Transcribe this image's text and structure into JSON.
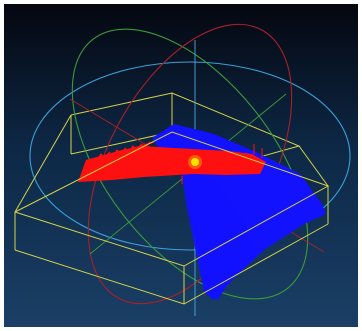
{
  "scene": {
    "background": {
      "top": "#05070f",
      "mid": "#0d2846",
      "bottom": "#1a3f66"
    },
    "colors": {
      "bounding_box": "#d4d34a",
      "gizmo_z": "#3aa0d8",
      "gizmo_y": "#3c9a3c",
      "gizmo_x": "#a8202a",
      "axis": "#4fa8e0",
      "red_point_cloud": "#ff1010",
      "blue_point_cloud": "#1212ff",
      "pivot": "#f6e300"
    },
    "objects": [
      "bounding-box",
      "rotation-gizmo",
      "red-point-cloud",
      "blue-point-cloud",
      "pivot-point"
    ]
  }
}
